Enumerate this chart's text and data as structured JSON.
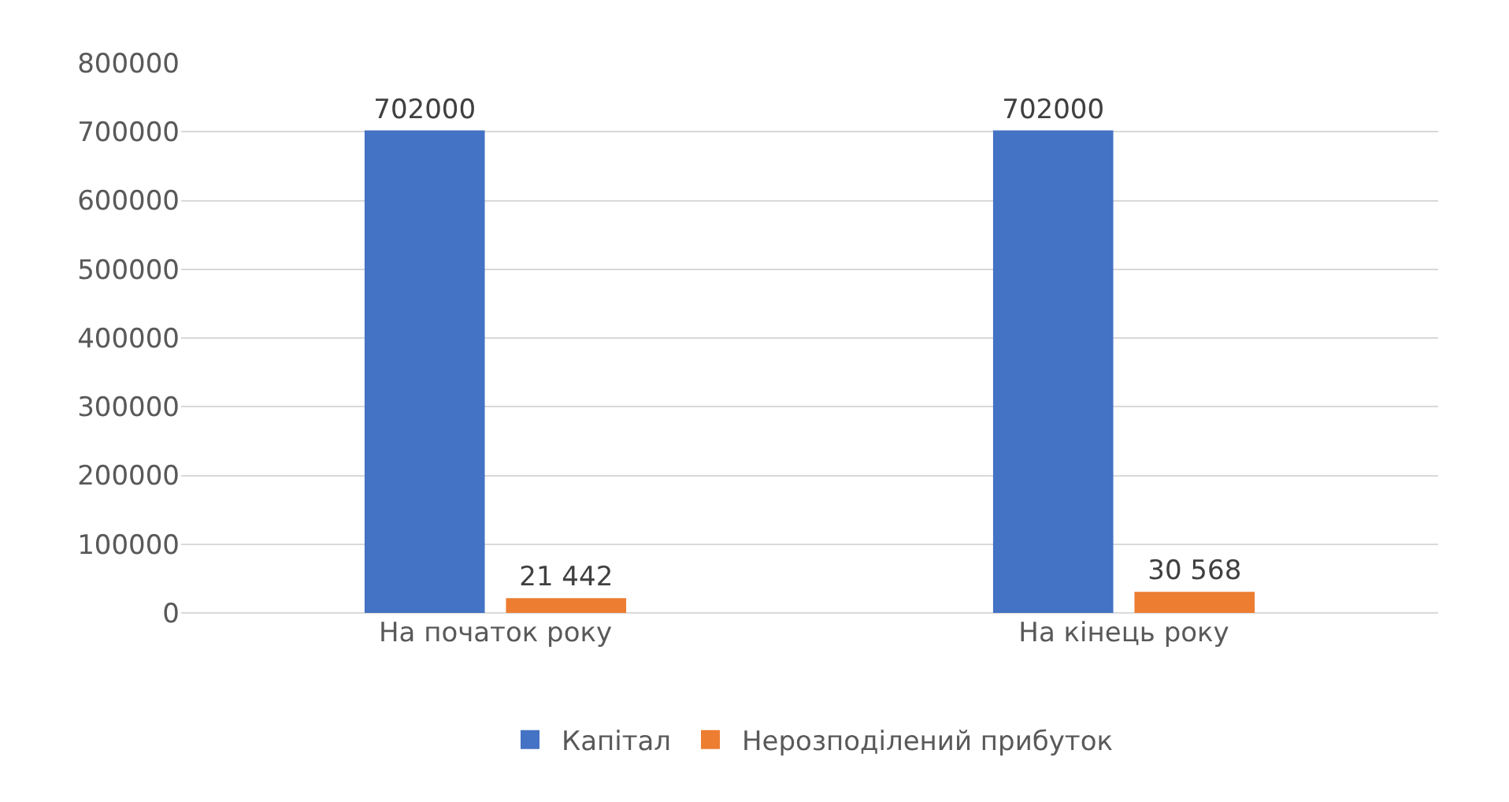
{
  "chart_data": {
    "type": "bar",
    "categories": [
      "На початок року",
      "На кінець року"
    ],
    "series": [
      {
        "name": "Капітал",
        "color": "#4472c4",
        "values": [
          702000,
          702000
        ],
        "value_labels": [
          "702000",
          "702000"
        ]
      },
      {
        "name": "Нерозподілений прибуток",
        "color": "#ed7d31",
        "values": [
          21442,
          30568
        ],
        "value_labels": [
          "21 442",
          "30 568"
        ]
      }
    ],
    "ylim": [
      0,
      800000
    ],
    "yticks": [
      0,
      100000,
      200000,
      300000,
      400000,
      500000,
      600000,
      700000,
      800000
    ],
    "grid": "y",
    "legend": "bottom"
  }
}
